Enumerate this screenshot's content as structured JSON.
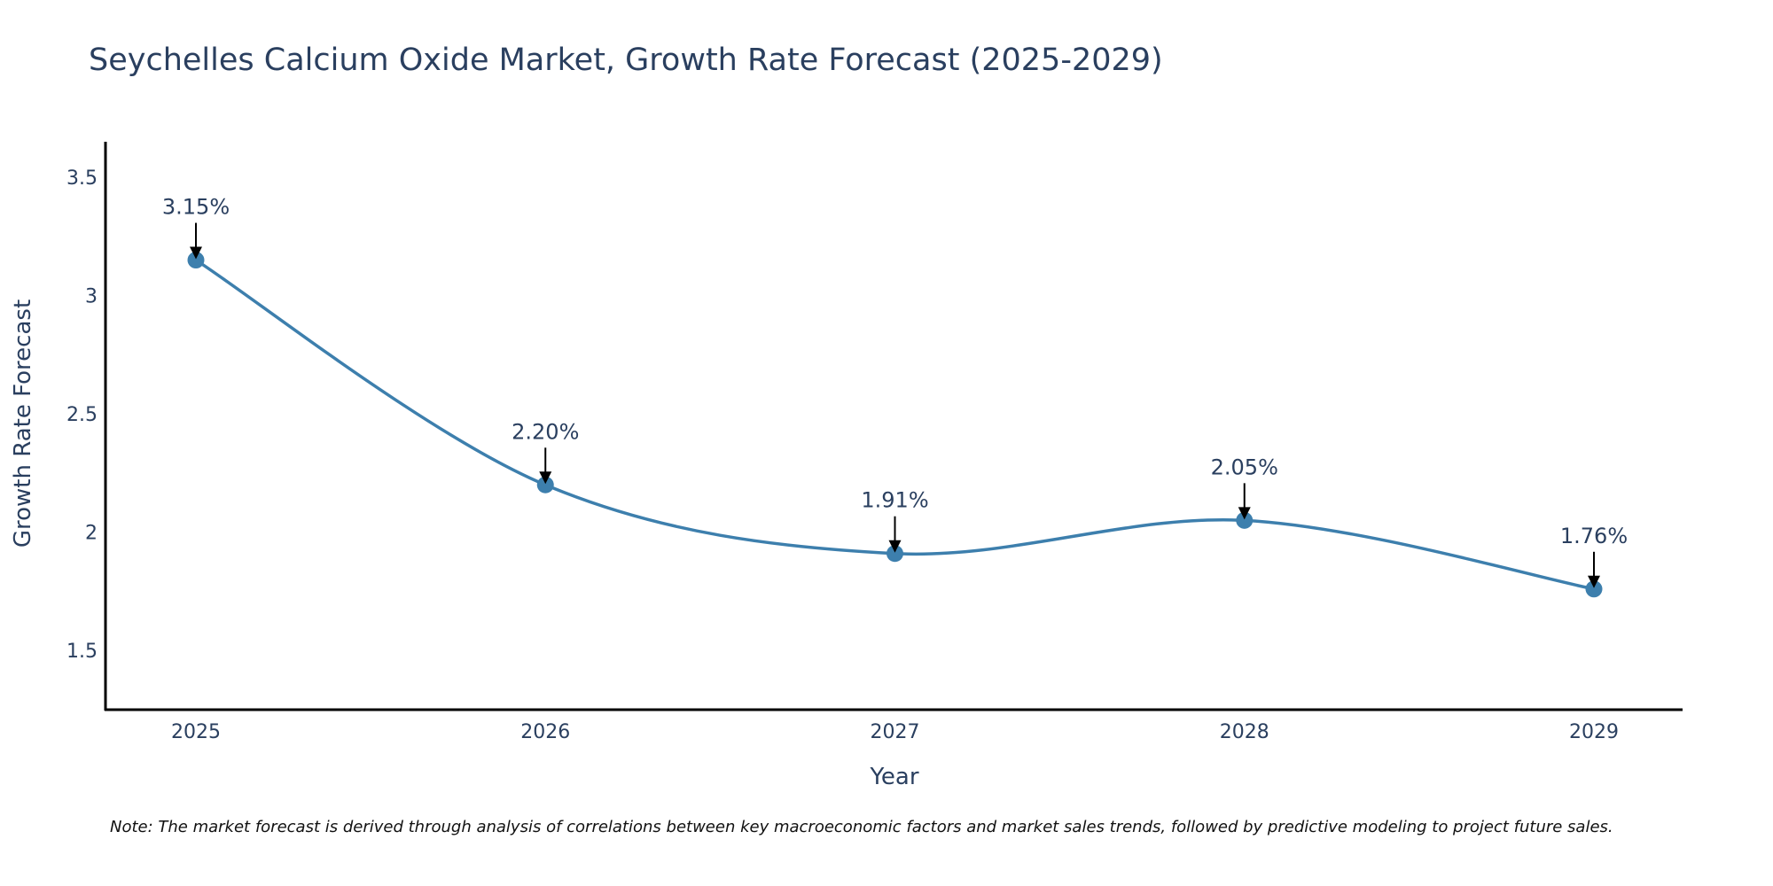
{
  "chart_data": {
    "type": "line",
    "title": "Seychelles Calcium Oxide Market, Growth Rate Forecast (2025-2029)",
    "xlabel": "Year",
    "ylabel": "Growth Rate Forecast",
    "categories": [
      "2025",
      "2026",
      "2027",
      "2028",
      "2029"
    ],
    "values": [
      3.15,
      2.2,
      1.91,
      2.05,
      1.76
    ],
    "data_labels": [
      "3.15%",
      "2.20%",
      "1.91%",
      "2.05%",
      "1.76%"
    ],
    "ylim": [
      1.25,
      3.65
    ],
    "yticks": [
      1.5,
      2,
      2.5,
      3,
      3.5
    ],
    "ytick_labels": [
      "1.5",
      "2",
      "2.5",
      "3",
      "3.5"
    ],
    "grid": false,
    "line_shape": "spline",
    "series_color": "#3d7fad",
    "marker_color": "#3d7fad",
    "axis_color": "#000000",
    "text_color": "#2a3f5f",
    "arrow_color": "#000000"
  },
  "note": "Note: The market forecast is derived through analysis of correlations between key macroeconomic factors and market sales trends, followed by predictive modeling to project future sales."
}
